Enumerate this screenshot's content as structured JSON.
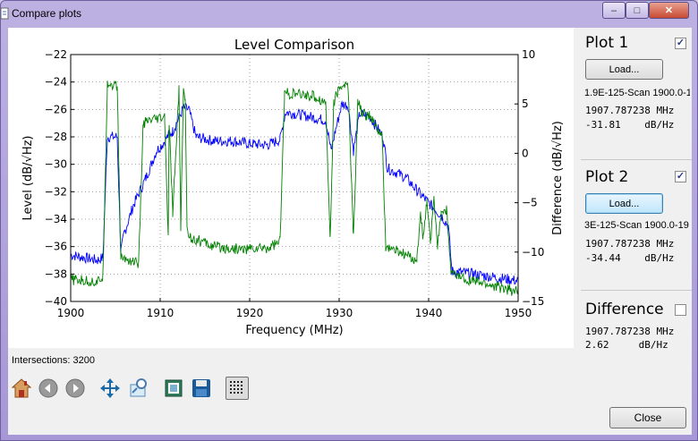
{
  "window": {
    "title": "Compare plots",
    "close_button": "Close"
  },
  "status": {
    "intersections": "Intersections: 3200"
  },
  "plot1": {
    "title": "Plot 1",
    "checked": true,
    "load_label": "Load...",
    "file": "1.9E-125-Scan 1900.0-1",
    "freq": "1907.787238 MHz",
    "level": "-31.81    dB/Hz"
  },
  "plot2": {
    "title": "Plot 2",
    "checked": true,
    "load_label": "Load...",
    "file": "3E-125-Scan 1900.0-19",
    "freq": "1907.787238 MHz",
    "level": "-34.44    dB/Hz"
  },
  "difference": {
    "title": "Difference",
    "checked": false,
    "freq": "1907.787238 MHz",
    "level": "2.62     dB/Hz"
  },
  "toolbar": [
    "home-icon",
    "back-icon",
    "forward-icon",
    "pan-icon",
    "zoom-icon",
    "subplots-icon",
    "save-icon",
    "grid-icon"
  ],
  "chart_data": {
    "type": "line",
    "title": "Level Comparison",
    "xlabel": "Frequency (MHz)",
    "ylabel": "Level (dB/√Hz)",
    "y2label": "Difference (dB/√Hz)",
    "xlim": [
      1900,
      1950
    ],
    "ylim": [
      -40,
      -22
    ],
    "y2lim": [
      -15,
      10
    ],
    "xticks": [
      "1900",
      "1910",
      "1920",
      "1930",
      "1940",
      "1950"
    ],
    "yticks": [
      "−40",
      "−38",
      "−36",
      "−34",
      "−32",
      "−30",
      "−28",
      "−26",
      "−24",
      "−22"
    ],
    "y2ticks": [
      "−15",
      "−10",
      "−5",
      "0",
      "5",
      "10"
    ],
    "grid": true,
    "series": [
      {
        "color": "#0000ff",
        "x": [
          1900,
          1903,
          1903.6,
          1904.1,
          1905.2,
          1905.6,
          1906,
          1907,
          1908.4,
          1909,
          1909.6,
          1910.3,
          1911,
          1911.4,
          1912.6,
          1913.2,
          1914,
          1916,
          1918,
          1920,
          1922,
          1923.4,
          1924,
          1925,
          1926.5,
          1928.5,
          1929.1,
          1929.6,
          1930.3,
          1931,
          1931.6,
          1932.3,
          1933.4,
          1934.9,
          1935.4,
          1936.4,
          1937.5,
          1938.8,
          1940.3,
          1941.5,
          1942.2,
          1942.6,
          1945,
          1948,
          1950
        ],
        "y": [
          -36.6,
          -37,
          -36.8,
          -28,
          -28,
          -36.4,
          -35,
          -33,
          -31,
          -30,
          -29,
          -28.5,
          -27.8,
          -27.6,
          -25.9,
          -26,
          -28,
          -28.3,
          -28.3,
          -28.5,
          -28.6,
          -28.2,
          -26.2,
          -26.3,
          -26.5,
          -26.8,
          -29,
          -27.5,
          -25.6,
          -25.7,
          -29,
          -26.3,
          -26.5,
          -28,
          -30.3,
          -30.6,
          -31,
          -32,
          -33,
          -33.8,
          -34.5,
          -37.8,
          -38,
          -38.3,
          -38.5
        ]
      },
      {
        "color": "#008000",
        "x": [
          1900,
          1903,
          1903.6,
          1904.1,
          1905.2,
          1905.6,
          1907.6,
          1908.1,
          1910.5,
          1910.9,
          1911,
          1911.4,
          1911.9,
          1912.1,
          1912.3,
          1912.6,
          1912.8,
          1913,
          1913.3,
          1916,
          1919,
          1922,
          1923.4,
          1923.9,
          1925,
          1927,
          1928.5,
          1929,
          1929.4,
          1930.3,
          1931,
          1931.6,
          1932.1,
          1932.5,
          1933.4,
          1934.8,
          1935.2,
          1937,
          1938.7,
          1939.1,
          1939.4,
          1939.8,
          1940.2,
          1940.6,
          1941,
          1941.4,
          1942,
          1942.5,
          1945,
          1948,
          1950
        ],
        "y": [
          -38.4,
          -38.6,
          -38.2,
          -24.1,
          -24.3,
          -36.8,
          -37.2,
          -27,
          -26.6,
          -35.5,
          -27,
          -33.5,
          -27.2,
          -24.6,
          -34.5,
          -24.8,
          -25,
          -34.8,
          -35.3,
          -36,
          -36.2,
          -36.1,
          -35.6,
          -24.8,
          -24.9,
          -25,
          -25.5,
          -35.5,
          -25.4,
          -24.2,
          -24.3,
          -35.4,
          -25.2,
          -26.2,
          -26.5,
          -28,
          -36,
          -36.5,
          -37,
          -33.5,
          -35.5,
          -32.8,
          -35.7,
          -32.6,
          -35.8,
          -33.5,
          -33.3,
          -38,
          -38.5,
          -39,
          -39.3
        ]
      }
    ]
  }
}
